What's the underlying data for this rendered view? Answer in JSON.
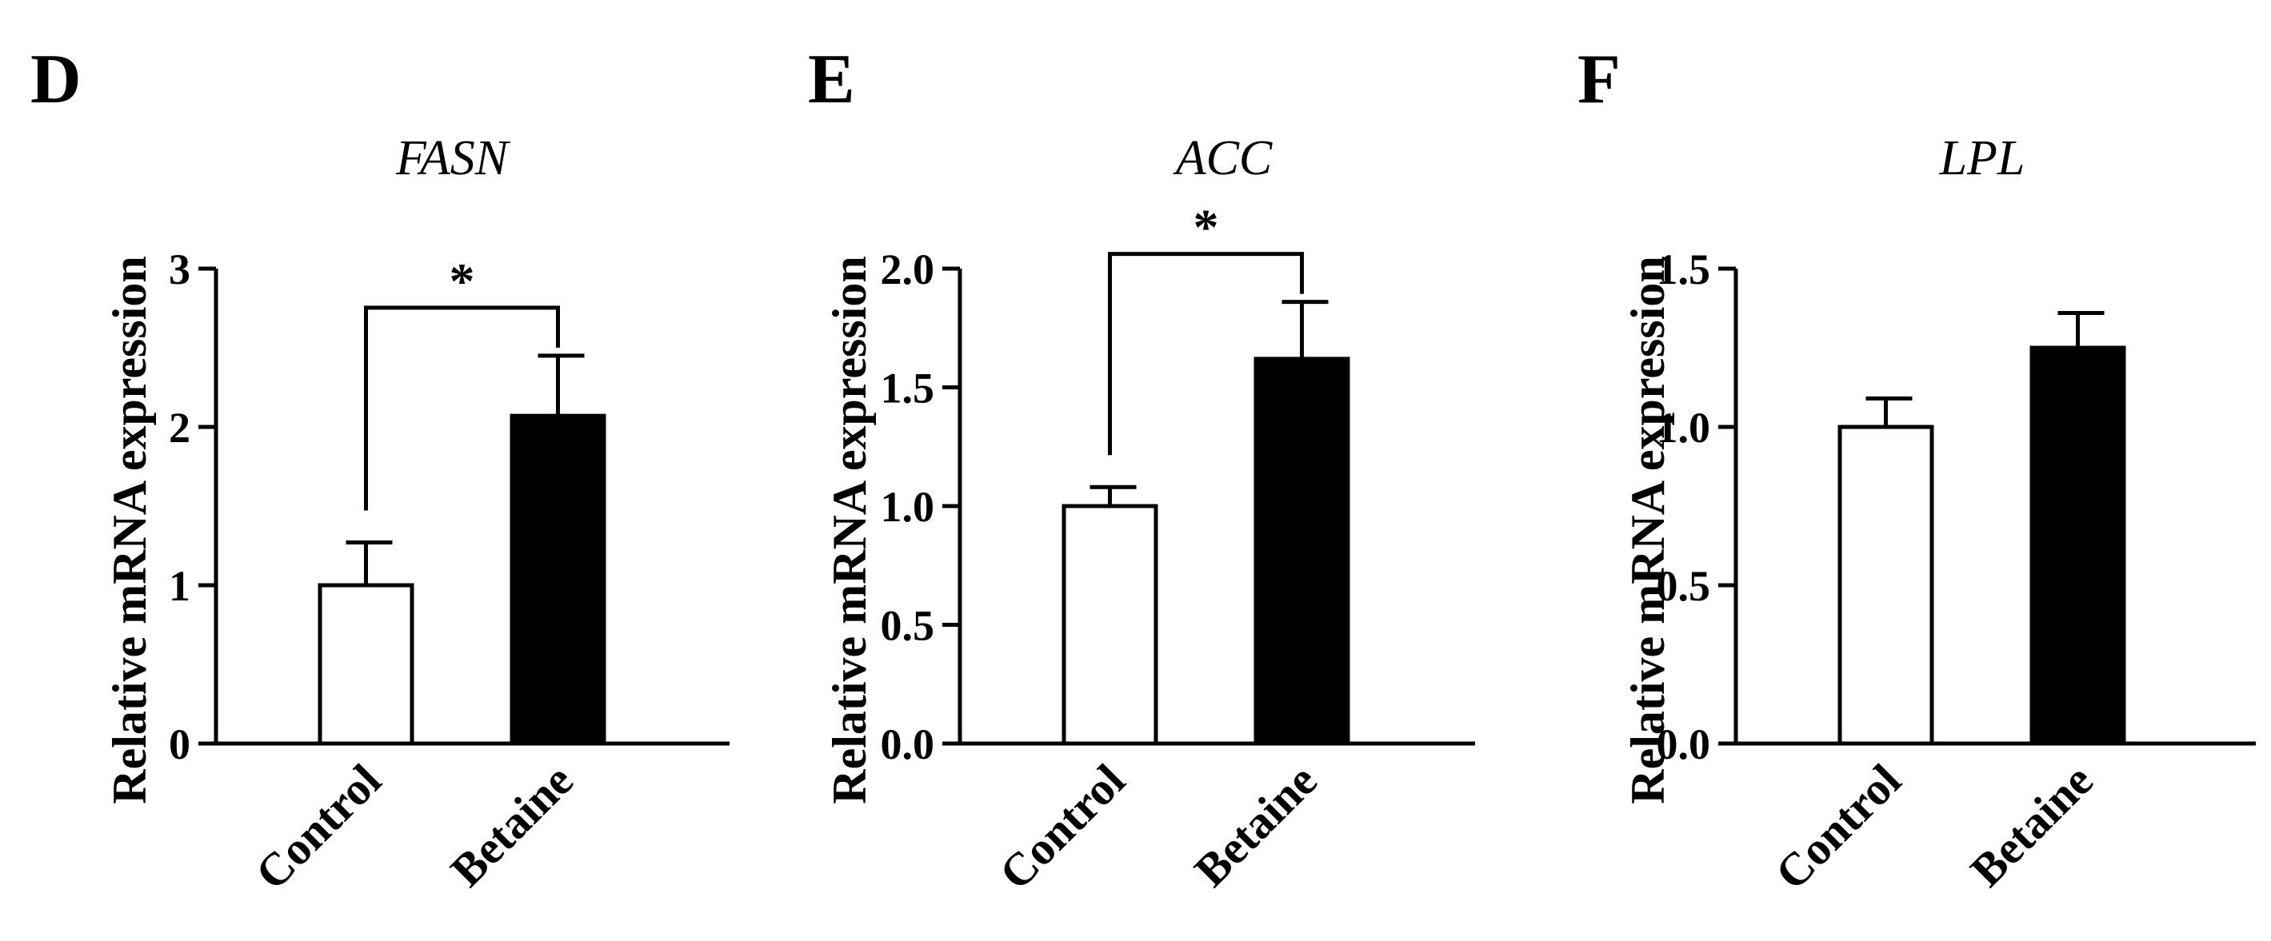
{
  "chart_data": [
    {
      "type": "bar",
      "panel": "D",
      "title": "FASN",
      "ylabel": "Relative mRNA expression",
      "categories": [
        "Control",
        "Betaine"
      ],
      "values": [
        1.0,
        2.07
      ],
      "errors": [
        0.27,
        0.38
      ],
      "bar_colors": [
        "#ffffff",
        "#000000"
      ],
      "ylim": [
        0,
        3
      ],
      "yticks": [
        0,
        1,
        2,
        3
      ],
      "ytick_labels": [
        "0",
        "1",
        "2",
        "3"
      ],
      "significance": {
        "pair": [
          0,
          1
        ],
        "label": "*"
      }
    },
    {
      "type": "bar",
      "panel": "E",
      "title": "ACC",
      "ylabel": "Relative mRNA expression",
      "categories": [
        "Control",
        "Betaine"
      ],
      "values": [
        1.0,
        1.62
      ],
      "errors": [
        0.08,
        0.24
      ],
      "bar_colors": [
        "#ffffff",
        "#000000"
      ],
      "ylim": [
        0,
        2
      ],
      "yticks": [
        0,
        0.5,
        1,
        1.5,
        2
      ],
      "ytick_labels": [
        "0.0",
        "0.5",
        "1.0",
        "1.5",
        "2.0"
      ],
      "significance": {
        "pair": [
          0,
          1
        ],
        "label": "*"
      }
    },
    {
      "type": "bar",
      "panel": "F",
      "title": "LPL",
      "ylabel": "Relative mRNA expression",
      "categories": [
        "Control",
        "Betaine"
      ],
      "values": [
        1.0,
        1.25
      ],
      "errors": [
        0.09,
        0.11
      ],
      "bar_colors": [
        "#ffffff",
        "#000000"
      ],
      "ylim": [
        0,
        1.5
      ],
      "yticks": [
        0,
        0.5,
        1,
        1.5
      ],
      "ytick_labels": [
        "0.0",
        "0.5",
        "1.0",
        "1.5"
      ],
      "significance": null
    }
  ]
}
